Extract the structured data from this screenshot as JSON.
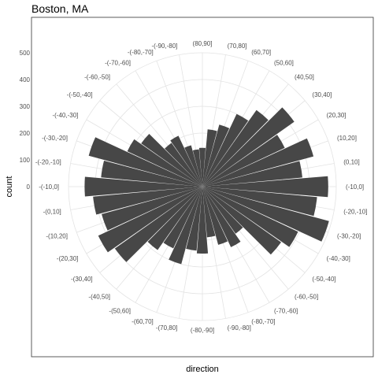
{
  "chart_data": {
    "type": "bar",
    "coord": "polar",
    "title": "Boston, MA",
    "xlabel": "direction",
    "ylabel": "count",
    "yticks": [
      0,
      100,
      200,
      300,
      400,
      500
    ],
    "ylim": [
      0,
      500
    ],
    "grid": true,
    "colors": {
      "bar": "#474747",
      "grid": "#e3e3e3",
      "panel_border": "#333333",
      "background": "#ffffff"
    },
    "categories": [
      "(80,90]",
      "(70,80]",
      "(60,70]",
      "(50,60]",
      "(40,50]",
      "(30,40]",
      "(20,30]",
      "(10,20]",
      "(0,10]",
      "(-10,0]",
      "(-20,-10]",
      "(-30,-20]",
      "(-40,-30]",
      "(-50,-40]",
      "(-60,-50]",
      "(-70,-60]",
      "(-80,-70]",
      "(-90,-80]",
      "(-80,-90]",
      "-(70,80]",
      "-(60,70]",
      "-(50,60]",
      "-(40,50]",
      "-(30,40]",
      "-(20,30]",
      "-(10,20]",
      "-(0,10]",
      "-(-10,0]",
      "-(-20,-10]",
      "-(-30,-20]",
      "-(-40,-30]",
      "-(-50,-40]",
      "-(-60,-50]",
      "-(-70,-60]",
      "-(-80,-70]",
      "-(-90,-80]"
    ],
    "values": [
      145,
      215,
      240,
      300,
      350,
      420,
      340,
      430,
      375,
      470,
      430,
      490,
      395,
      360,
      215,
      250,
      225,
      190,
      250,
      240,
      300,
      255,
      290,
      400,
      430,
      390,
      410,
      440,
      380,
      440,
      310,
      280,
      200,
      210,
      160,
      140
    ]
  }
}
